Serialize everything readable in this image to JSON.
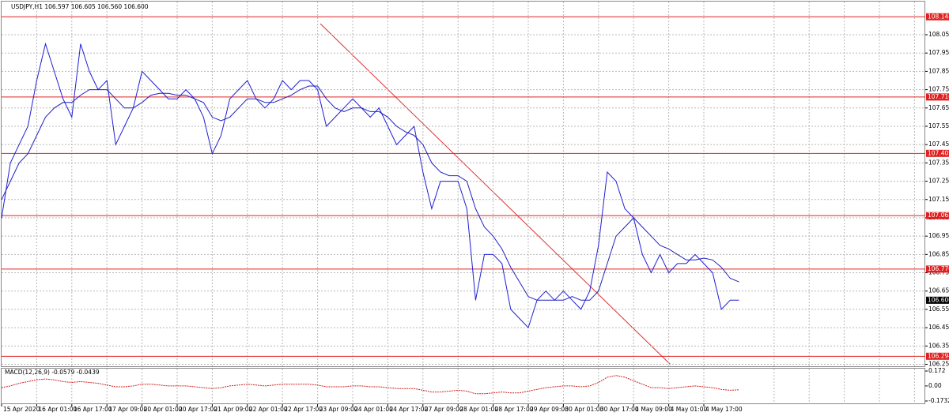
{
  "chart_data": [
    {
      "type": "line",
      "title": "USDJPY,H1  106.597 106.605 106.560 106.600",
      "categories": [
        "15 Apr 2020",
        null,
        null,
        null,
        "16 Apr 01:00",
        null,
        null,
        null,
        "16 Apr 17:00",
        null,
        null,
        null,
        "17 Apr 09:00",
        null,
        null,
        null,
        "20 Apr 01:00",
        null,
        null,
        null,
        "20 Apr 17:00",
        null,
        null,
        null,
        "21 Apr 09:00",
        null,
        null,
        null,
        "22 Apr 01:00",
        null,
        null,
        null,
        "22 Apr 17:00",
        null,
        null,
        null,
        "23 Apr 09:00",
        null,
        null,
        null,
        "24 Apr 01:00",
        null,
        null,
        null,
        "24 Apr 17:00",
        null,
        null,
        null,
        "27 Apr 09:00",
        null,
        null,
        null,
        "28 Apr 01:00",
        null,
        null,
        null,
        "28 Apr 17:00",
        null,
        null,
        null,
        "29 Apr 09:00",
        null,
        null,
        null,
        "30 Apr 01:00",
        null,
        null,
        null,
        "30 Apr 17:00",
        null,
        null,
        null,
        "1 May 09:00",
        null,
        null,
        null,
        "4 May 01:00",
        null,
        null,
        null,
        "4 May 17:00",
        null,
        null,
        null,
        null
      ],
      "series": [
        {
          "color": "#1f1fd6",
          "values": [
            107.05,
            107.35,
            107.45,
            107.55,
            107.8,
            108.0,
            107.85,
            107.7,
            107.6,
            108.0,
            107.85,
            107.75,
            107.8,
            107.45,
            107.55,
            107.65,
            107.85,
            107.8,
            107.75,
            107.7,
            107.7,
            107.75,
            107.7,
            107.6,
            107.4,
            107.5,
            107.7,
            107.75,
            107.8,
            107.7,
            107.65,
            107.7,
            107.8,
            107.75,
            107.8,
            107.8,
            107.75,
            107.55,
            107.6,
            107.65,
            107.7,
            107.65,
            107.6,
            107.65,
            107.55,
            107.45,
            107.5,
            107.55,
            107.3,
            107.1,
            107.25,
            107.25,
            107.25,
            107.1,
            106.6,
            106.85,
            106.85,
            106.8,
            106.55,
            106.5,
            106.45,
            106.6,
            106.65,
            106.6,
            106.65,
            106.6,
            106.55,
            106.65,
            106.9,
            107.3,
            107.25,
            107.1,
            107.05,
            106.85,
            106.75,
            106.85,
            106.75,
            106.8,
            106.8,
            106.85,
            106.8,
            106.75,
            106.55,
            106.6,
            106.6
          ]
        },
        {
          "color": "#2020c0",
          "values": [
            107.15,
            107.25,
            107.35,
            107.4,
            107.5,
            107.6,
            107.65,
            107.68,
            107.68,
            107.72,
            107.75,
            107.75,
            107.75,
            107.7,
            107.65,
            107.65,
            107.68,
            107.72,
            107.73,
            107.73,
            107.72,
            107.72,
            107.7,
            107.68,
            107.6,
            107.58,
            107.6,
            107.65,
            107.7,
            107.7,
            107.68,
            107.68,
            107.7,
            107.72,
            107.75,
            107.77,
            107.77,
            107.7,
            107.65,
            107.63,
            107.65,
            107.65,
            107.63,
            107.63,
            107.6,
            107.55,
            107.52,
            107.5,
            107.45,
            107.35,
            107.3,
            107.28,
            107.28,
            107.25,
            107.1,
            107.0,
            106.95,
            106.88,
            106.78,
            106.7,
            106.62,
            106.6,
            106.6,
            106.6,
            106.6,
            106.62,
            106.6,
            106.6,
            106.65,
            106.8,
            106.95,
            107.0,
            107.05,
            107.0,
            106.95,
            106.9,
            106.88,
            106.85,
            106.82,
            106.82,
            106.83,
            106.82,
            106.78,
            106.72,
            106.7
          ]
        }
      ],
      "ylim": [
        106.235,
        108.188
      ],
      "yticks": [
        {
          "value": 108.05,
          "label": "108.050"
        },
        {
          "value": 107.95,
          "label": "107.950"
        },
        {
          "value": 107.85,
          "label": "107.850"
        },
        {
          "value": 107.75,
          "label": "107.750"
        },
        {
          "value": 107.65,
          "label": "107.650"
        },
        {
          "value": 107.55,
          "label": "107.550"
        },
        {
          "value": 107.45,
          "label": "107.450"
        },
        {
          "value": 107.35,
          "label": "107.350"
        },
        {
          "value": 107.25,
          "label": "107.250"
        },
        {
          "value": 107.15,
          "label": "107.150"
        },
        {
          "value": 107.05,
          "label": "107.050"
        },
        {
          "value": 106.95,
          "label": "106.950"
        },
        {
          "value": 106.85,
          "label": "106.850"
        },
        {
          "value": 106.75,
          "label": "106.750"
        },
        {
          "value": 106.65,
          "label": "106.650"
        },
        {
          "value": 106.55,
          "label": "106.550"
        },
        {
          "value": 106.45,
          "label": "106.450"
        },
        {
          "value": 106.35,
          "label": "106.350"
        },
        {
          "value": 106.25,
          "label": "106.250"
        }
      ],
      "levels": [
        {
          "value": 108.148,
          "label": "108.148"
        },
        {
          "value": 107.71,
          "label": "107.710"
        },
        {
          "value": 107.402,
          "label": "107.402"
        },
        {
          "value": 107.062,
          "label": "107.062"
        },
        {
          "value": 106.77,
          "label": "106.770"
        },
        {
          "value": 106.294,
          "label": "106.294"
        }
      ],
      "level_color": "#e02020",
      "current_price": {
        "value": 106.6,
        "label": "106.600"
      },
      "grid": true
    },
    {
      "type": "line",
      "title": "MACD(12,26,9) -0.0579 -0.0439",
      "color": "#d02020",
      "values": [
        -0.02,
        0.0,
        0.03,
        0.05,
        0.07,
        0.08,
        0.07,
        0.05,
        0.04,
        0.05,
        0.04,
        0.03,
        0.01,
        -0.01,
        -0.01,
        0.0,
        0.02,
        0.02,
        0.01,
        0.0,
        0.0,
        0.0,
        -0.01,
        -0.02,
        -0.03,
        -0.02,
        0.0,
        0.01,
        0.02,
        0.01,
        0.0,
        0.01,
        0.02,
        0.02,
        0.02,
        0.02,
        0.01,
        -0.01,
        -0.01,
        -0.01,
        0.0,
        0.0,
        -0.01,
        -0.01,
        -0.02,
        -0.03,
        -0.03,
        -0.03,
        -0.05,
        -0.07,
        -0.07,
        -0.06,
        -0.05,
        -0.06,
        -0.09,
        -0.09,
        -0.08,
        -0.07,
        -0.08,
        -0.08,
        -0.06,
        -0.04,
        -0.02,
        -0.01,
        0.0,
        0.0,
        -0.01,
        0.0,
        0.04,
        0.1,
        0.12,
        0.1,
        0.06,
        0.02,
        -0.02,
        -0.02,
        -0.03,
        -0.02,
        -0.01,
        0.0,
        -0.01,
        -0.02,
        -0.04,
        -0.05,
        -0.0439
      ],
      "ylim": [
        -0.1732,
        0.172
      ],
      "yticks": [
        0.172,
        {
          "value": 0,
          "label": "0.00"
        },
        -0.1732
      ]
    }
  ]
}
